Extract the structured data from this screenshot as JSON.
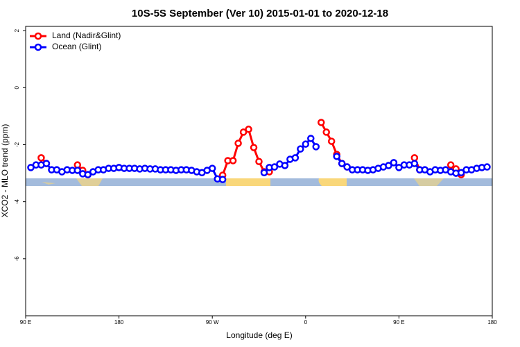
{
  "chart_data": {
    "type": "line",
    "title": "10S-5S September (Ver 10)   2015-01-01 to 2020-12-18",
    "xlabel": "Longitude (deg E)",
    "ylabel": "XCO2 - MLO trend (ppm)",
    "xlim": [
      90,
      540
    ],
    "ylim": [
      -8,
      2.15
    ],
    "xticks": [
      {
        "value": 90,
        "label": "90 E"
      },
      {
        "value": 180,
        "label": "180"
      },
      {
        "value": 270,
        "label": "90 W"
      },
      {
        "value": 360,
        "label": "0"
      },
      {
        "value": 450,
        "label": "90 E"
      },
      {
        "value": 540,
        "label": "180"
      }
    ],
    "yticks": [
      2,
      0,
      -2,
      -4,
      -6
    ],
    "legend": "top-left",
    "series": [
      {
        "name": "Land (Nadir&Glint)",
        "color": "#ff0000",
        "x": [
          105,
          110,
          115,
          140,
          145,
          150,
          155,
          280,
          285,
          290,
          295,
          300,
          305,
          310,
          315,
          320,
          325,
          330,
          375,
          380,
          385,
          390,
          395,
          400,
          405,
          465,
          470,
          475,
          500,
          505,
          510
        ],
        "values": [
          -2.46,
          -2.66,
          null,
          -2.71,
          -2.9,
          -3.05,
          null,
          -3.07,
          -2.56,
          -2.56,
          -1.95,
          -1.56,
          -1.46,
          -2.1,
          -2.59,
          -2.95,
          -2.95,
          null,
          -1.22,
          -1.56,
          -1.88,
          -2.34,
          -2.66,
          -2.78,
          null,
          -2.46,
          -2.88,
          null,
          -2.71,
          -2.85,
          -3.05
        ]
      },
      {
        "name": "Ocean (Glint)",
        "color": "#0000ff",
        "x": [
          95,
          100,
          105,
          110,
          115,
          120,
          125,
          130,
          135,
          140,
          145,
          150,
          155,
          160,
          165,
          170,
          175,
          180,
          185,
          190,
          195,
          200,
          205,
          210,
          215,
          220,
          225,
          230,
          235,
          240,
          245,
          250,
          255,
          260,
          265,
          270,
          275,
          280,
          285,
          320,
          325,
          330,
          335,
          340,
          345,
          350,
          355,
          360,
          365,
          370,
          375,
          390,
          395,
          400,
          405,
          410,
          415,
          420,
          425,
          430,
          435,
          440,
          445,
          450,
          455,
          460,
          465,
          470,
          475,
          480,
          485,
          490,
          495,
          500,
          505,
          510,
          515,
          520,
          525,
          530,
          535
        ],
        "values": [
          -2.8,
          -2.71,
          -2.71,
          -2.66,
          -2.88,
          -2.88,
          -2.95,
          -2.88,
          -2.9,
          -2.9,
          -3.02,
          -3.05,
          -2.95,
          -2.88,
          -2.88,
          -2.83,
          -2.83,
          -2.8,
          -2.83,
          -2.83,
          -2.83,
          -2.85,
          -2.83,
          -2.85,
          -2.85,
          -2.88,
          -2.88,
          -2.88,
          -2.9,
          -2.88,
          -2.88,
          -2.9,
          -2.95,
          -2.98,
          -2.9,
          -2.83,
          -3.2,
          -3.22,
          null,
          -2.98,
          -2.8,
          -2.78,
          -2.68,
          -2.73,
          -2.51,
          -2.46,
          -2.15,
          -1.98,
          -1.78,
          -2.07,
          null,
          -2.41,
          -2.66,
          -2.78,
          -2.88,
          -2.88,
          -2.88,
          -2.9,
          -2.88,
          -2.83,
          -2.78,
          -2.73,
          -2.63,
          -2.8,
          -2.71,
          -2.71,
          -2.66,
          -2.88,
          -2.88,
          -2.95,
          -2.88,
          -2.9,
          -2.88,
          -2.95,
          -3.0,
          -2.98,
          -2.88,
          -2.88,
          -2.83,
          -2.8,
          -2.78
        ]
      }
    ]
  }
}
